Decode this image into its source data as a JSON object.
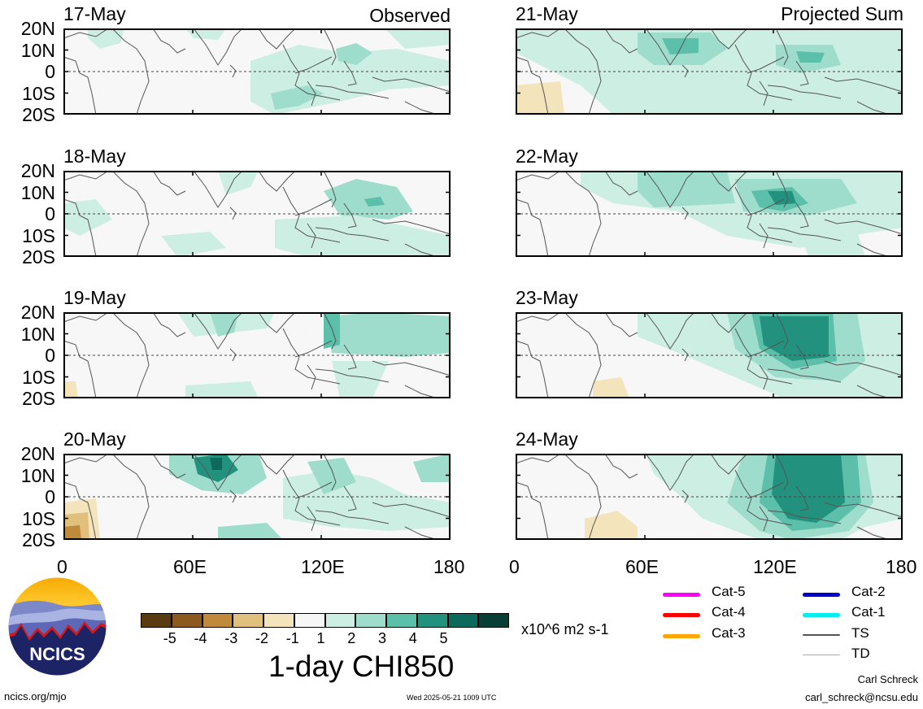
{
  "observed_label": "Observed",
  "projected_label": "Projected Sum",
  "panels": [
    {
      "date": "17-May",
      "col": 0,
      "row": 0
    },
    {
      "date": "18-May",
      "col": 0,
      "row": 1
    },
    {
      "date": "19-May",
      "col": 0,
      "row": 2
    },
    {
      "date": "20-May",
      "col": 0,
      "row": 3
    },
    {
      "date": "21-May",
      "col": 1,
      "row": 0
    },
    {
      "date": "22-May",
      "col": 1,
      "row": 1
    },
    {
      "date": "23-May",
      "col": 1,
      "row": 2
    },
    {
      "date": "24-May",
      "col": 1,
      "row": 3
    }
  ],
  "lat_labels": [
    "20N",
    "10N",
    "0",
    "10S",
    "20S"
  ],
  "lon_labels": [
    "0",
    "60E",
    "120E",
    "180"
  ],
  "colorbar": {
    "title": "1-day CHI850",
    "units": "x10^6 m2 s-1",
    "tick_labels": [
      "-5",
      "-4",
      "-3",
      "-2",
      "-1",
      "1",
      "2",
      "3",
      "4",
      "5"
    ],
    "colors": [
      "#5a3a10",
      "#8c5a1e",
      "#c08a3c",
      "#e0c07c",
      "#f4e4bc",
      "#f6f6f6",
      "#cdeee3",
      "#9edccb",
      "#5cbfaa",
      "#22927f",
      "#0b6a5c",
      "#073f36"
    ]
  },
  "storm_legend": [
    {
      "label": "Cat-5",
      "color": "#ff00ff"
    },
    {
      "label": "Cat-4",
      "color": "#ff0000"
    },
    {
      "label": "Cat-3",
      "color": "#ffa500"
    },
    {
      "label": "Cat-2",
      "color": "#0000cc"
    },
    {
      "label": "Cat-1",
      "color": "#00eeee"
    },
    {
      "label": "TS",
      "color": "#555555"
    },
    {
      "label": "TD",
      "color": "#aaaaaa"
    }
  ],
  "logo_text": "NCICS",
  "footer_left": "ncics.org/mjo",
  "footer_center": "Wed 2025-05-21 1009 UTC",
  "credit_name": "Carl Schreck",
  "credit_email": "carl_schreck@ncsu.edu"
}
